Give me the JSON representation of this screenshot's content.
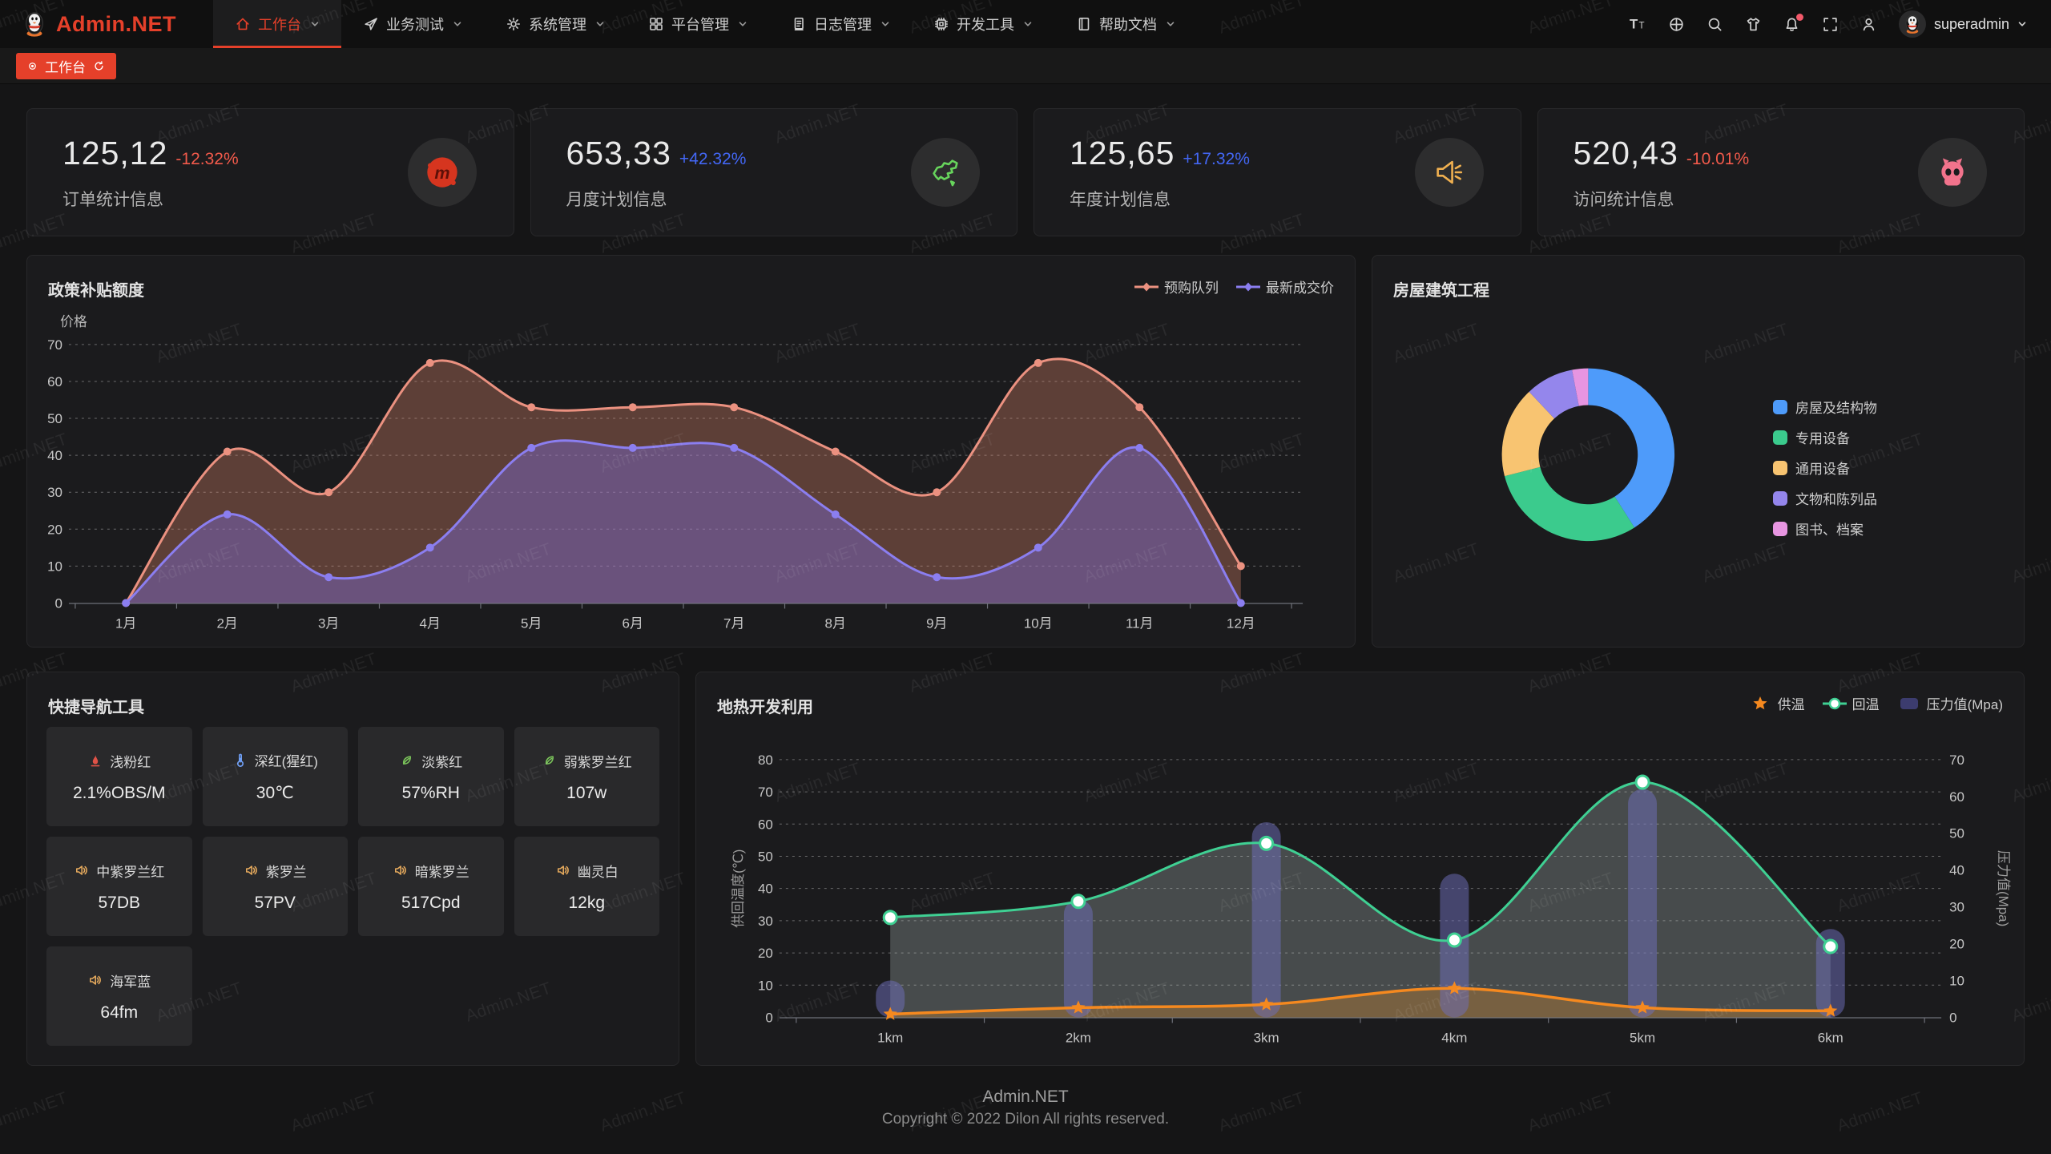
{
  "header": {
    "logo_text": "Admin.NET",
    "nav": [
      {
        "key": "workbench",
        "icon": "home-icon",
        "label": "工作台",
        "active": true
      },
      {
        "key": "business-test",
        "icon": "send-icon",
        "label": "业务测试",
        "active": false
      },
      {
        "key": "system-mgmt",
        "icon": "gear-icon",
        "label": "系统管理",
        "active": false
      },
      {
        "key": "platform-mgmt",
        "icon": "grid-icon",
        "label": "平台管理",
        "active": false
      },
      {
        "key": "log-mgmt",
        "icon": "log-icon",
        "label": "日志管理",
        "active": false
      },
      {
        "key": "dev-tools",
        "icon": "chip-icon",
        "label": "开发工具",
        "active": false
      },
      {
        "key": "help-docs",
        "icon": "book-icon",
        "label": "帮助文档",
        "active": false
      }
    ],
    "actions": [
      {
        "name": "font-size-icon"
      },
      {
        "name": "translate-icon"
      },
      {
        "name": "search-icon"
      },
      {
        "name": "theme-shirt-icon"
      },
      {
        "name": "notification-bell-icon",
        "badge": true
      },
      {
        "name": "fullscreen-icon"
      },
      {
        "name": "profile-icon"
      }
    ],
    "user": {
      "name": "superadmin",
      "avatar": "penguin-avatar"
    }
  },
  "tabbar": {
    "active_tab": {
      "label": "工作台"
    }
  },
  "stats": [
    {
      "value": "125,12",
      "delta": "-12.32%",
      "trend": "down",
      "label": "订单统计信息",
      "icon": "meetup-icon"
    },
    {
      "value": "653,33",
      "delta": "+42.32%",
      "trend": "up",
      "label": "月度计划信息",
      "icon": "china-map-icon"
    },
    {
      "value": "125,65",
      "delta": "+17.32%",
      "trend": "up",
      "label": "年度计划信息",
      "icon": "megaphone-icon"
    },
    {
      "value": "520,43",
      "delta": "-10.01%",
      "trend": "down",
      "label": "访问统计信息",
      "icon": "octocat-icon"
    }
  ],
  "chart_data": [
    {
      "type": "area",
      "title": "政策补贴额度",
      "ylabel": "价格",
      "ylim": [
        0,
        70
      ],
      "grid": "dashed",
      "legend_position": "top-right",
      "x": [
        "1月",
        "2月",
        "3月",
        "4月",
        "5月",
        "6月",
        "7月",
        "8月",
        "9月",
        "10月",
        "11月",
        "12月"
      ],
      "series": [
        {
          "name": "预购队列",
          "color": "#eb9180",
          "fill": "rgba(233,139,112,0.32)",
          "values": [
            0,
            41,
            30,
            65,
            53,
            53,
            53,
            41,
            30,
            65,
            53,
            10
          ]
        },
        {
          "name": "最新成交价",
          "color": "#8b7ef0",
          "fill": "rgba(128,112,236,0.38)",
          "values": [
            0,
            24,
            7,
            15,
            42,
            42,
            42,
            24,
            7,
            15,
            42,
            0
          ]
        }
      ]
    },
    {
      "type": "pie",
      "title": "房屋建筑工程",
      "donut": true,
      "legend_position": "right",
      "slices": [
        {
          "name": "房屋及结构物",
          "value": 41,
          "color": "#4e9bfa"
        },
        {
          "name": "专用设备",
          "value": 30,
          "color": "#3bcb8d"
        },
        {
          "name": "通用设备",
          "value": 17,
          "color": "#f8c471"
        },
        {
          "name": "文物和陈列品",
          "value": 9,
          "color": "#9486ec"
        },
        {
          "name": "图书、档案",
          "value": 3,
          "color": "#e795e1"
        }
      ]
    },
    {
      "type": "line+bar",
      "title": "地热开发利用",
      "x": [
        "1km",
        "2km",
        "3km",
        "4km",
        "5km",
        "6km"
      ],
      "ylabel_left": "供回温度(℃)",
      "ylabel_right": "压力值(Mpa)",
      "ylim_left": [
        0,
        80
      ],
      "ylim_right": [
        0,
        70
      ],
      "legend_position": "top-right",
      "series": [
        {
          "name": "供温",
          "type": "line",
          "axis": "left",
          "marker": "star",
          "color": "#f5891f",
          "fill": "rgba(246,150,40,0.28)",
          "values": [
            1,
            3,
            4,
            9,
            3,
            2
          ]
        },
        {
          "name": "回温",
          "type": "line",
          "axis": "left",
          "marker": "circle",
          "color": "#3fd093",
          "fill": "rgba(214,230,226,0.24)",
          "values": [
            31,
            36,
            54,
            24,
            73,
            22
          ]
        },
        {
          "name": "压力值(Mpa)",
          "type": "bar",
          "axis": "right",
          "color": "rgba(110,110,185,0.52)",
          "swatch": "#3c3c6e",
          "values": [
            10,
            32,
            53,
            39,
            62,
            24
          ]
        }
      ]
    }
  ],
  "quick_nav": {
    "title": "快捷导航工具",
    "items": [
      {
        "icon": "fire-icon",
        "icon_color": "#e05247",
        "name": "浅粉红",
        "value": "2.1%OBS/M"
      },
      {
        "icon": "thermometer-icon",
        "icon_color": "#6f9ff5",
        "name": "深红(猩红)",
        "value": "30℃"
      },
      {
        "icon": "leaf-icon",
        "icon_color": "#7ac35a",
        "name": "淡紫红",
        "value": "57%RH"
      },
      {
        "icon": "leaf-icon",
        "icon_color": "#7ac35a",
        "name": "弱紫罗兰红",
        "value": "107w"
      },
      {
        "icon": "speaker-icon",
        "icon_color": "#e3a85c",
        "name": "中紫罗兰红",
        "value": "57DB"
      },
      {
        "icon": "speaker-icon",
        "icon_color": "#e3a85c",
        "name": "紫罗兰",
        "value": "57PV"
      },
      {
        "icon": "speaker-icon",
        "icon_color": "#e3a85c",
        "name": "暗紫罗兰",
        "value": "517Cpd"
      },
      {
        "icon": "speaker-icon",
        "icon_color": "#e3a85c",
        "name": "幽灵白",
        "value": "12kg"
      },
      {
        "icon": "speaker-icon",
        "icon_color": "#e3a85c",
        "name": "海军蓝",
        "value": "64fm"
      }
    ]
  },
  "footer": {
    "brand": "Admin.NET",
    "copyright": "Copyright © 2022 Dilon All rights reserved."
  },
  "watermark": {
    "text": "Admin.NET"
  },
  "theme": {
    "accent": "#e5402a",
    "down": "#f25a4b",
    "up": "#4367f5",
    "panel_bg": "#1b1b1d",
    "page_bg": "#151516"
  }
}
